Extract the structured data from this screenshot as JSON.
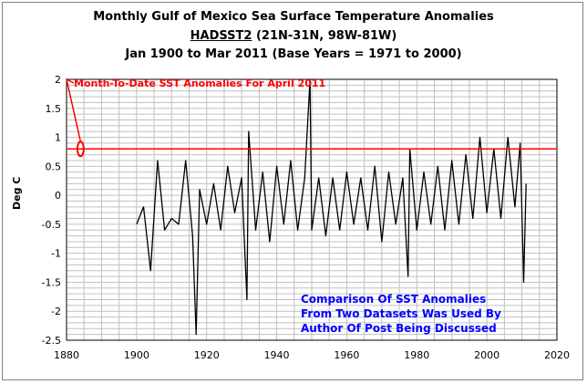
{
  "title": {
    "line1": "Monthly Gulf of Mexico Sea Surface Temperature Anomalies",
    "line2_dataset": "HADSST2",
    "line2_region": " (21N-31N, 98W-81W)",
    "line3": "Jan 1900 to Mar 2011 (Base Years = 1971 to 2000)"
  },
  "annotations": {
    "month_to_date": "Month-To-Date SST Anomalies For April 2011",
    "note": "Comparison Of SST Anomalies From Two Datasets Was Used By Author Of Post Being Discussed"
  },
  "colors": {
    "series": "#000000",
    "reference_line": "#ff0000",
    "note_text": "#0000ff",
    "grid": "#c0c0c0"
  },
  "chart_data": {
    "type": "line",
    "title": "Monthly Gulf of Mexico Sea Surface Temperature Anomalies",
    "subtitle": "HADSST2 (21N-31N, 98W-81W) Jan 1900 to Mar 2011 (Base Years = 1971 to 2000)",
    "xlabel": "",
    "ylabel": "Deg C",
    "xlim": [
      1880,
      2020
    ],
    "ylim": [
      -2.5,
      2
    ],
    "x_ticks": [
      1880,
      1900,
      1920,
      1940,
      1960,
      1980,
      2000,
      2020
    ],
    "y_ticks": [
      -2.5,
      -2,
      -1.5,
      -1,
      -0.5,
      0,
      0.5,
      1,
      1.5,
      2
    ],
    "y_tick_labels": [
      "-2.5",
      "-2",
      "-1.5",
      "-1",
      "-0.5",
      "0",
      "0.5",
      "1",
      "1.5",
      "2"
    ],
    "grid": true,
    "reference_line": {
      "y": 0.8,
      "label": "Month-To-Date SST Anomalies For April 2011"
    },
    "series": [
      {
        "x": [
          1900.0,
          1902.0,
          1904.0,
          1906.0,
          1908.0,
          1910.0,
          1912.0,
          1914.0,
          1916.0,
          1917.0,
          1918.0,
          1920.0,
          1922.0,
          1924.0,
          1926.0,
          1928.0,
          1930.0,
          1931.5,
          1932.0,
          1934.0,
          1936.0,
          1938.0,
          1940.0,
          1942.0,
          1944.0,
          1946.0,
          1948.0,
          1949.5,
          1950.0,
          1952.0,
          1954.0,
          1956.0,
          1958.0,
          1960.0,
          1962.0,
          1964.0,
          1966.0,
          1968.0,
          1970.0,
          1972.0,
          1974.0,
          1976.0,
          1977.5,
          1978.0,
          1980.0,
          1982.0,
          1984.0,
          1986.0,
          1988.0,
          1990.0,
          1992.0,
          1994.0,
          1996.0,
          1998.0,
          2000.0,
          2002.0,
          2004.0,
          2006.0,
          2008.0,
          2009.5,
          2010.5,
          2011.2
        ],
        "values": [
          -0.5,
          -0.2,
          -1.3,
          0.6,
          -0.6,
          -0.4,
          -0.5,
          0.6,
          -0.7,
          -2.4,
          0.1,
          -0.5,
          0.2,
          -0.6,
          0.5,
          -0.3,
          0.3,
          -1.8,
          1.1,
          -0.6,
          0.4,
          -0.8,
          0.5,
          -0.5,
          0.6,
          -0.6,
          0.3,
          2.0,
          -0.6,
          0.3,
          -0.7,
          0.3,
          -0.6,
          0.4,
          -0.5,
          0.3,
          -0.6,
          0.5,
          -0.8,
          0.4,
          -0.5,
          0.3,
          -1.4,
          0.8,
          -0.6,
          0.4,
          -0.5,
          0.5,
          -0.6,
          0.6,
          -0.5,
          0.7,
          -0.4,
          1.0,
          -0.3,
          0.8,
          -0.4,
          1.0,
          -0.2,
          0.9,
          -1.5,
          0.2
        ]
      }
    ]
  }
}
